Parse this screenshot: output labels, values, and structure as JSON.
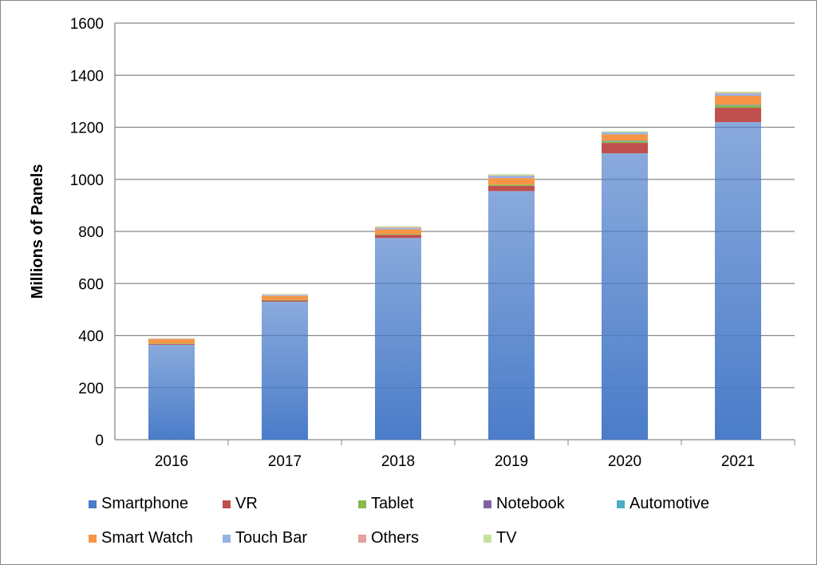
{
  "chart_data": {
    "type": "bar",
    "stacked": true,
    "ylabel": "Millions of Panels",
    "xlabel": "",
    "ylim": [
      0,
      1600
    ],
    "yticks": [
      0,
      200,
      400,
      600,
      800,
      1000,
      1200,
      1400,
      1600
    ],
    "grid": true,
    "legend_position": "bottom",
    "categories": [
      "2016",
      "2017",
      "2018",
      "2019",
      "2020",
      "2021"
    ],
    "series": [
      {
        "name": "Smartphone",
        "color": "#4a7cc9",
        "values": [
          365,
          530,
          775,
          955,
          1100,
          1220
        ]
      },
      {
        "name": "VR",
        "color": "#c0504d",
        "values": [
          3,
          5,
          12,
          20,
          40,
          55
        ]
      },
      {
        "name": "Tablet",
        "color": "#8bb84a",
        "values": [
          2,
          2,
          3,
          5,
          5,
          8
        ]
      },
      {
        "name": "Notebook",
        "color": "#8064a2",
        "values": [
          0,
          0,
          0,
          0,
          0,
          0
        ]
      },
      {
        "name": "Automotive",
        "color": "#4bacc6",
        "values": [
          0,
          0,
          0,
          0,
          3,
          3
        ]
      },
      {
        "name": "Smart Watch",
        "color": "#f79646",
        "values": [
          15,
          15,
          18,
          25,
          25,
          35
        ]
      },
      {
        "name": "Touch Bar",
        "color": "#95b3e6",
        "values": [
          0,
          3,
          5,
          8,
          8,
          8
        ]
      },
      {
        "name": "Others",
        "color": "#e6a09e",
        "values": [
          3,
          2,
          3,
          2,
          0,
          3
        ]
      },
      {
        "name": "TV",
        "color": "#c3e39c",
        "values": [
          2,
          3,
          4,
          5,
          4,
          5
        ]
      }
    ]
  }
}
